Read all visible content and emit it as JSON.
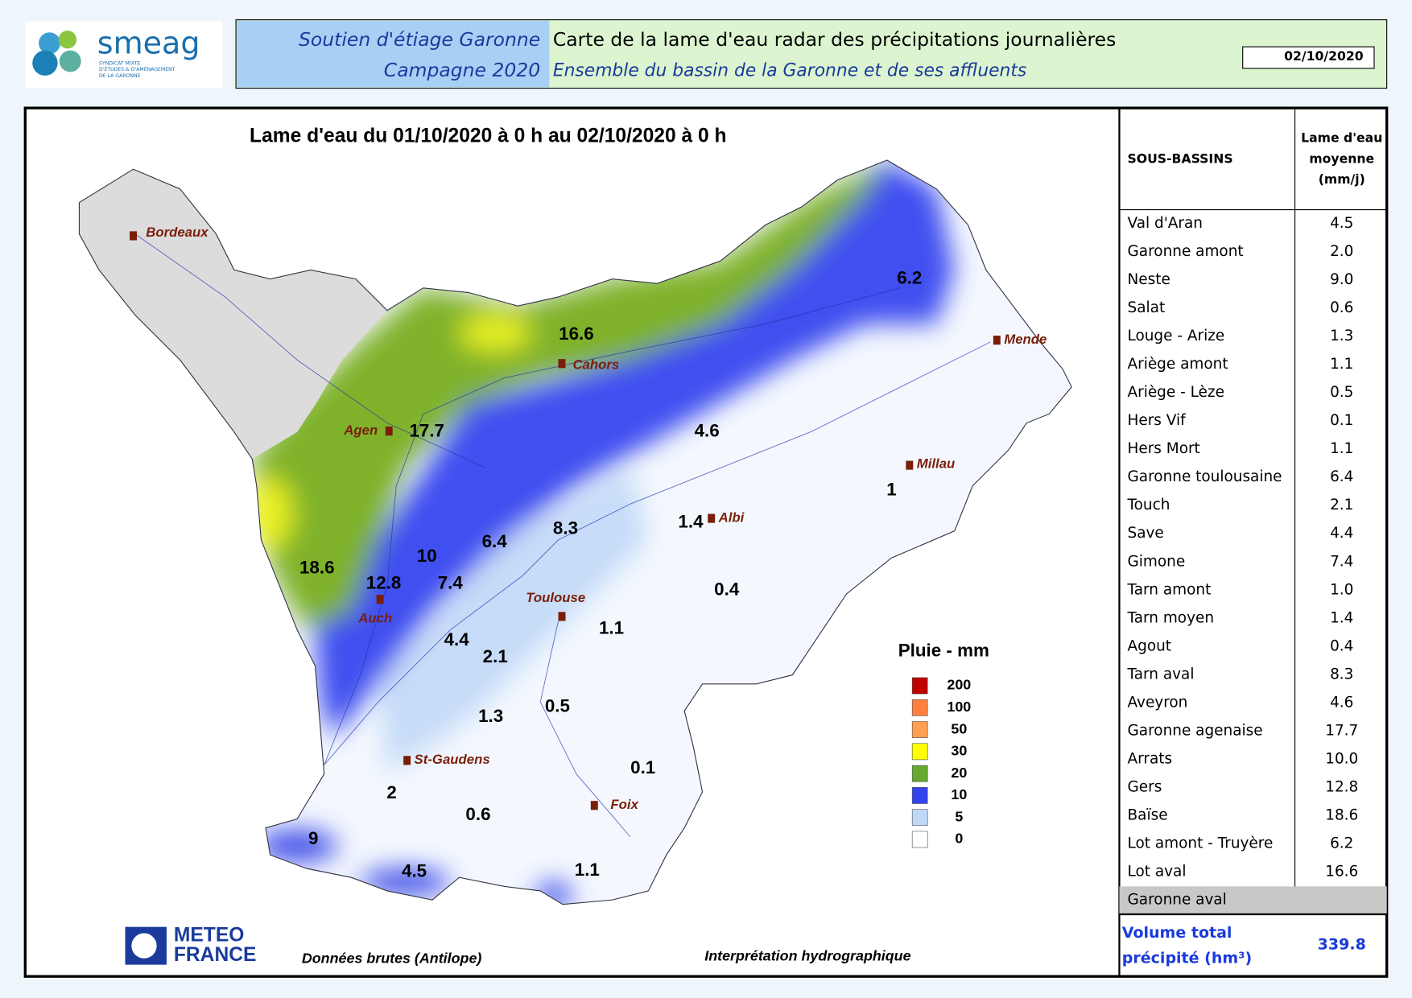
{
  "header": {
    "logo": {
      "name": "smeag",
      "subtitle": [
        "SYNDICAT MIXTE",
        "D'ÉTUDES & D'AMÉNAGEMENT",
        "DE LA GARONNE"
      ]
    },
    "program": [
      "Soutien d'étiage Garonne",
      "Campagne 2020"
    ],
    "title": "Carte de la lame d'eau radar des précipitations journalières",
    "subtitle": "Ensemble du bassin de la Garonne et de ses affluents",
    "date": "02/10/2020"
  },
  "map": {
    "title": "Lame d'eau du 01/10/2020 à 0 h au 02/10/2020 à 0 h",
    "places": [
      "Bordeaux",
      "Cahors",
      "Agen",
      "Millau",
      "Albi",
      "Mende",
      "Toulouse",
      "Auch",
      "St-Gaudens",
      "Foix"
    ],
    "values": [
      "6.2",
      "16.6",
      "17.7",
      "4.6",
      "1",
      "1.4",
      "8.3",
      "6.4",
      "10",
      "18.6",
      "12.8",
      "7.4",
      "0.4",
      "1.1",
      "4.4",
      "2.1",
      "0.5",
      "1.3",
      "0.1",
      "2",
      "0.6",
      "9",
      "4.5",
      "1.1"
    ],
    "legend": {
      "title": "Pluie - mm",
      "items": [
        {
          "label": "200",
          "color": "#c00000"
        },
        {
          "label": "100",
          "color": "#ff7f3f"
        },
        {
          "label": "50",
          "color": "#ffa050"
        },
        {
          "label": "30",
          "color": "#ffff00"
        },
        {
          "label": "20",
          "color": "#66a830"
        },
        {
          "label": "10",
          "color": "#3344ee"
        },
        {
          "label": "5",
          "color": "#c0d8f8"
        },
        {
          "label": "0",
          "color": "#ffffff"
        }
      ]
    },
    "source": [
      "METEO",
      "FRANCE"
    ],
    "notes": [
      "Données brutes (Antilope)",
      "Interprétation hydrographique"
    ]
  },
  "table": {
    "header": [
      "SOUS-BASSINS",
      [
        "Lame d'eau",
        "moyenne",
        "(mm/j)"
      ]
    ],
    "rows": [
      [
        "Val d'Aran",
        "4.5"
      ],
      [
        "Garonne amont",
        "2.0"
      ],
      [
        "Neste",
        "9.0"
      ],
      [
        "Salat",
        "0.6"
      ],
      [
        "Louge - Arize",
        "1.3"
      ],
      [
        "Ariège amont",
        "1.1"
      ],
      [
        "Ariège - Lèze",
        "0.5"
      ],
      [
        "Hers Vif",
        "0.1"
      ],
      [
        "Hers Mort",
        "1.1"
      ],
      [
        "Garonne toulousaine",
        "6.4"
      ],
      [
        "Touch",
        "2.1"
      ],
      [
        "Save",
        "4.4"
      ],
      [
        "Gimone",
        "7.4"
      ],
      [
        "Tarn amont",
        "1.0"
      ],
      [
        "Tarn moyen",
        "1.4"
      ],
      [
        "Agout",
        "0.4"
      ],
      [
        "Tarn aval",
        "8.3"
      ],
      [
        "Aveyron",
        "4.6"
      ],
      [
        "Garonne agenaise",
        "17.7"
      ],
      [
        "Arrats",
        "10.0"
      ],
      [
        "Gers",
        "12.8"
      ],
      [
        "Baïse",
        "18.6"
      ],
      [
        "Lot amont - Truyère",
        "6.2"
      ],
      [
        "Lot aval",
        "16.6"
      ],
      [
        "Garonne aval"
      ]
    ],
    "total": {
      "label": [
        "Volume total",
        "précipité (hm³)"
      ],
      "value": "339.8"
    }
  }
}
